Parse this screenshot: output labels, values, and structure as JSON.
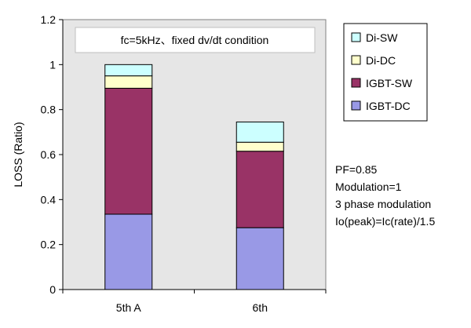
{
  "chart_data": {
    "type": "bar",
    "stacked": true,
    "categories": [
      "5th A",
      "6th"
    ],
    "series": [
      {
        "name": "IGBT-DC",
        "values": [
          0.335,
          0.275
        ],
        "color": "#9999e6"
      },
      {
        "name": "IGBT-SW",
        "values": [
          0.56,
          0.34
        ],
        "color": "#993366"
      },
      {
        "name": "Di-DC",
        "values": [
          0.055,
          0.04
        ],
        "color": "#ffffcc"
      },
      {
        "name": "Di-SW",
        "values": [
          0.05,
          0.09
        ],
        "color": "#ccffff"
      }
    ],
    "ylabel": "LOSS (Ratio)",
    "ylim": [
      0,
      1.2
    ],
    "yticks": [
      "0",
      "0.2",
      "0.4",
      "0.6",
      "0.8",
      "1",
      "1.2"
    ],
    "plot_background": "#e6e6e6",
    "legend_position": "right",
    "legend_order": [
      "Di-SW",
      "Di-DC",
      "IGBT-SW",
      "IGBT-DC"
    ],
    "annotation": "fc=5kHz、fixed dv/dt condition",
    "notes": [
      "PF=0.85",
      "Modulation=1",
      "3 phase modulation",
      "Io(peak)=Ic(rate)/1.5"
    ]
  }
}
